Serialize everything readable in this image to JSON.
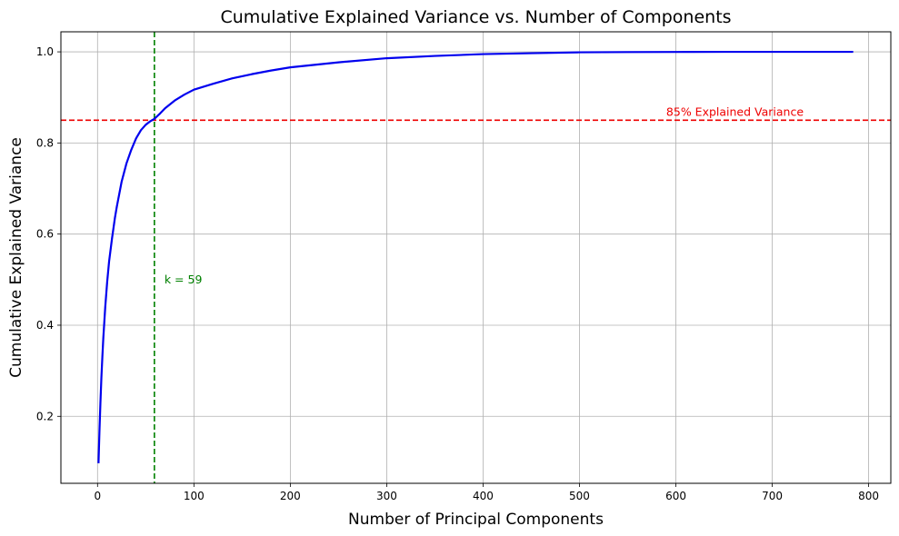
{
  "chart_data": {
    "type": "line",
    "title": "Cumulative Explained Variance vs. Number of Components",
    "xlabel": "Number of Principal Components",
    "ylabel": "Cumulative Explained Variance",
    "xlim": [
      -38,
      823
    ],
    "ylim": [
      0.053,
      1.044
    ],
    "xticks": [
      0,
      100,
      200,
      300,
      400,
      500,
      600,
      700,
      800
    ],
    "yticks": [
      0.2,
      0.4,
      0.6,
      0.8,
      1.0
    ],
    "grid": true,
    "series": [
      {
        "color": "#0000ee",
        "x": [
          1,
          2,
          3,
          4,
          5,
          6,
          8,
          10,
          12,
          15,
          18,
          20,
          25,
          30,
          35,
          40,
          45,
          50,
          55,
          59,
          65,
          70,
          80,
          90,
          100,
          120,
          140,
          160,
          180,
          200,
          250,
          300,
          350,
          400,
          450,
          500,
          550,
          600,
          650,
          700,
          750,
          784
        ],
        "y": [
          0.097,
          0.168,
          0.23,
          0.285,
          0.33,
          0.372,
          0.44,
          0.495,
          0.54,
          0.59,
          0.635,
          0.66,
          0.715,
          0.755,
          0.785,
          0.81,
          0.828,
          0.84,
          0.848,
          0.853,
          0.865,
          0.876,
          0.893,
          0.906,
          0.917,
          0.93,
          0.942,
          0.951,
          0.959,
          0.966,
          0.977,
          0.986,
          0.991,
          0.995,
          0.997,
          0.999,
          0.9995,
          0.9998,
          1.0,
          1.0,
          1.0,
          1.0
        ]
      }
    ],
    "reference_lines": [
      {
        "orientation": "horizontal",
        "value": 0.85,
        "color": "#ee0000",
        "style": "dashed",
        "label": "85% Explained Variance"
      },
      {
        "orientation": "vertical",
        "value": 59,
        "color": "#008000",
        "style": "dashed",
        "label": "k = 59"
      }
    ]
  }
}
